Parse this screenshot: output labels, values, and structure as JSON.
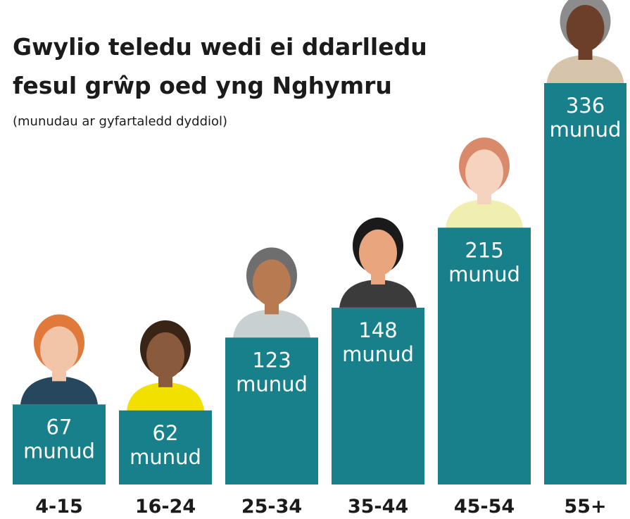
{
  "chart_data": {
    "type": "bar",
    "title": "Gwylio teledu wedi ei ddarlledu fesul grŵp oed yng Nghymru",
    "subtitle": "(munudau ar gyfartaledd dyddiol)",
    "categories": [
      "4-15",
      "16-24",
      "25-34",
      "35-44",
      "45-54",
      "55+"
    ],
    "values": [
      67,
      62,
      123,
      148,
      215,
      336
    ],
    "value_labels": [
      "67 munud",
      "62 munud",
      "123 munud",
      "148 munud",
      "215 munud",
      "336 munud"
    ],
    "color": "#17808b"
  }
}
